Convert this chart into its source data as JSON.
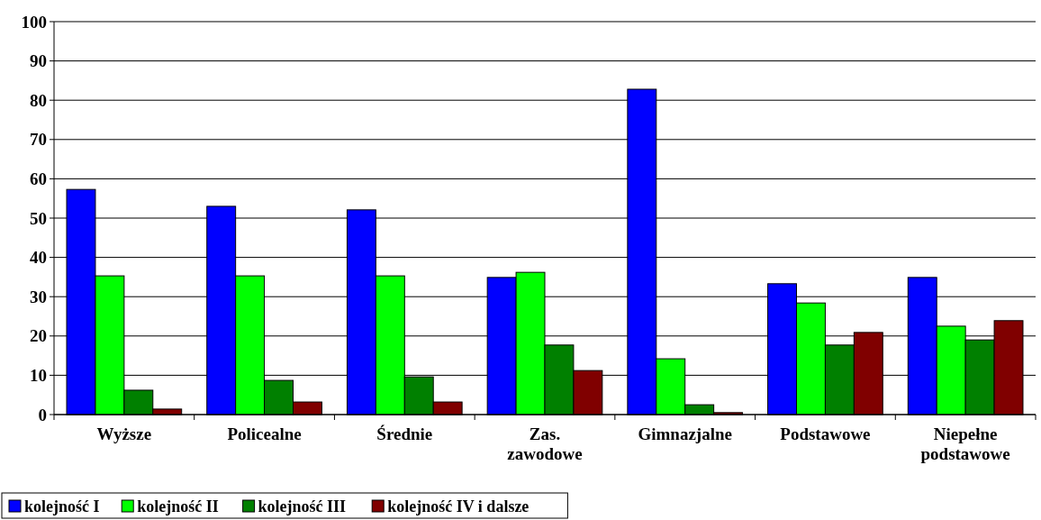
{
  "chart_data": {
    "type": "bar",
    "categories": [
      "Wyższe",
      "Policealne",
      "Średnie",
      "Zas. zawodowe",
      "Gimnazjalne",
      "Podstawowe",
      "Niepełne podstawowe"
    ],
    "series": [
      {
        "name": "kolejność I",
        "color": "#0000ff",
        "values": [
          57.3,
          53,
          52.1,
          34.9,
          82.8,
          33.3,
          34.9
        ]
      },
      {
        "name": "kolejność II",
        "color": "#00ff00",
        "values": [
          35.3,
          35.3,
          35.3,
          36.2,
          14.2,
          28.4,
          22.5
        ]
      },
      {
        "name": "kolejność III",
        "color": "#008000",
        "values": [
          6.2,
          8.7,
          9.6,
          17.7,
          2.5,
          17.7,
          19
        ]
      },
      {
        "name": "kolejność IV i dalsze",
        "color": "#800000",
        "values": [
          1.4,
          3.2,
          3.2,
          11.2,
          0.5,
          20.9,
          23.9
        ]
      }
    ],
    "ylim": [
      0,
      100
    ],
    "yticks": [
      0,
      10,
      20,
      30,
      40,
      50,
      60,
      70,
      80,
      90,
      100
    ],
    "grid": "y",
    "legend": "bottom left"
  }
}
